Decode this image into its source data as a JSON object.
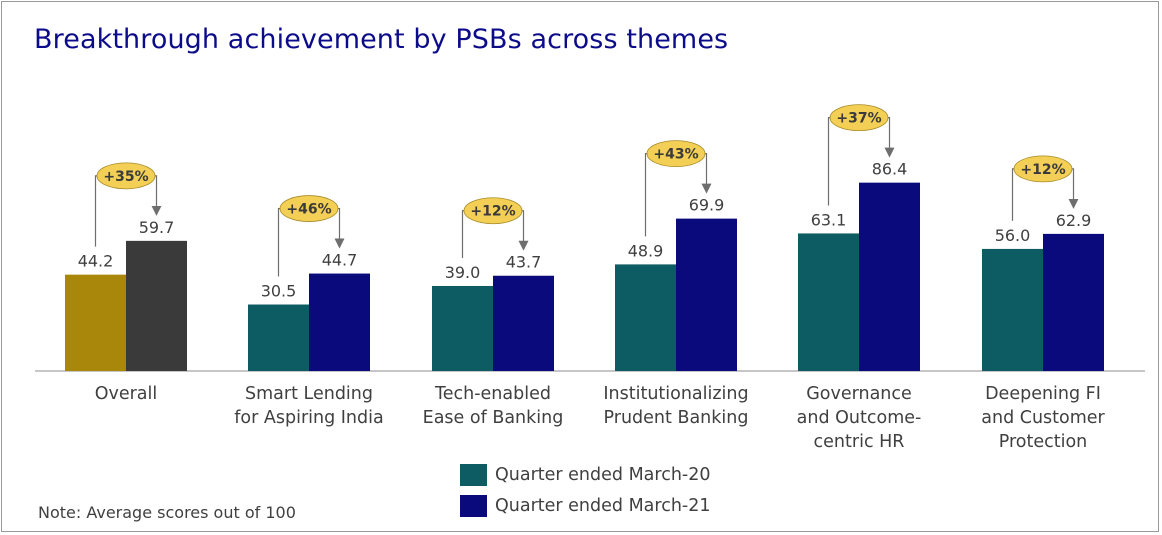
{
  "title": "Breakthrough achievement by PSBs across themes",
  "note": "Note: Average scores out of 100",
  "colors": {
    "march20": "#0d5c63",
    "march21": "#0a0a7c",
    "overall_march20": "#a8870a",
    "overall_march21": "#3a3a3a",
    "badge_fill": "#f3cf55",
    "title": "#0c0c8a"
  },
  "legend": [
    {
      "label": "Quarter ended March-20",
      "color": "#0d5c63"
    },
    {
      "label": "Quarter ended March-21",
      "color": "#0a0a7c"
    }
  ],
  "chart_data": {
    "type": "bar",
    "title": "Breakthrough achievement by PSBs across themes",
    "categories": [
      [
        "Overall"
      ],
      [
        "Smart Lending",
        "for Aspiring India"
      ],
      [
        "Tech-enabled",
        "Ease of Banking"
      ],
      [
        "Institutionalizing",
        "Prudent Banking"
      ],
      [
        "Governance",
        "and Outcome-",
        "centric HR"
      ],
      [
        "Deepening FI",
        "and Customer",
        "Protection"
      ]
    ],
    "series": [
      {
        "name": "Quarter ended March-20",
        "values": [
          44.2,
          30.5,
          39.0,
          48.9,
          63.1,
          56.0
        ],
        "labels": [
          "44.2",
          "30.5",
          "39.0",
          "48.9",
          "63.1",
          "56.0"
        ]
      },
      {
        "name": "Quarter ended March-21",
        "values": [
          59.7,
          44.7,
          43.7,
          69.9,
          86.4,
          62.9
        ],
        "labels": [
          "59.7",
          "44.7",
          "43.7",
          "69.9",
          "86.4",
          "62.9"
        ]
      }
    ],
    "growth_labels": [
      "+35%",
      "+46%",
      "+12%",
      "+43%",
      "+37%",
      "+12%"
    ],
    "ylim": [
      0,
      100
    ],
    "grid": false,
    "legend_position": "bottom-center"
  }
}
